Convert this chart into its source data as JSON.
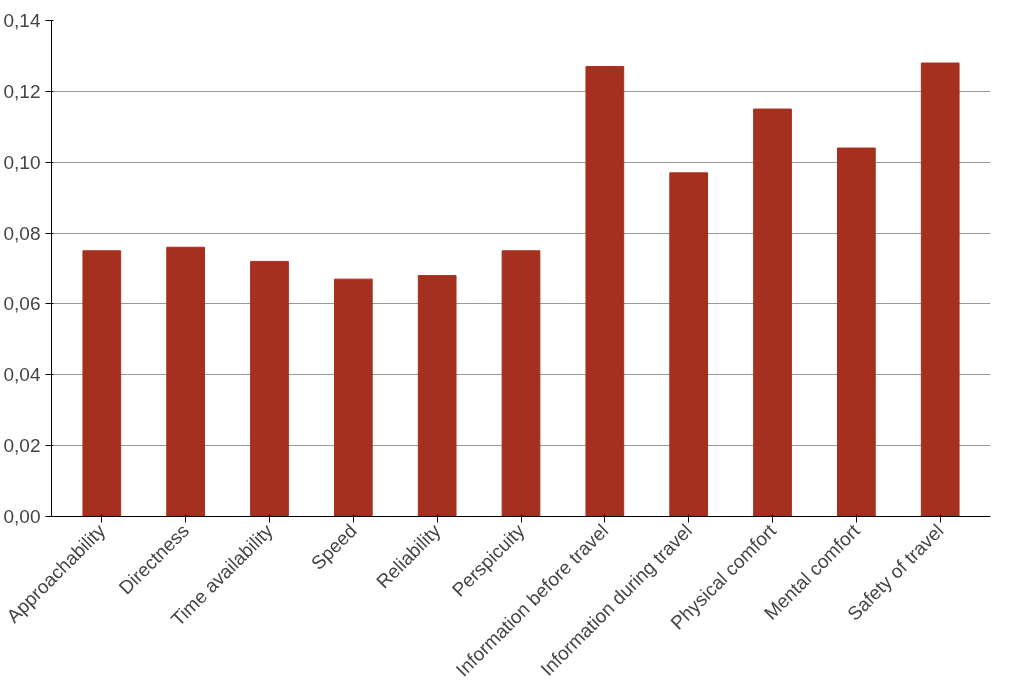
{
  "chart_data": {
    "type": "bar",
    "categories": [
      "Approachability",
      "Directness",
      "Time availability",
      "Speed",
      "Reliability",
      "Perspicuity",
      "Information before travel",
      "Information during travel",
      "Physical comfort",
      "Mental comfort",
      "Safety of travel"
    ],
    "values": [
      0.075,
      0.076,
      0.072,
      0.067,
      0.068,
      0.075,
      0.127,
      0.097,
      0.115,
      0.104,
      0.128
    ],
    "color": "#a5301f",
    "ylim": [
      0,
      0.14
    ],
    "yticks": [
      {
        "value": 0,
        "label": "0,00"
      },
      {
        "value": 0.02,
        "label": "0,02"
      },
      {
        "value": 0.04,
        "label": "0,04"
      },
      {
        "value": 0.06,
        "label": "0,06"
      },
      {
        "value": 0.08,
        "label": "0,08"
      },
      {
        "value": 0.1,
        "label": "0,10"
      },
      {
        "value": 0.12,
        "label": "0,12"
      },
      {
        "value": 0.14,
        "label": "0,14"
      }
    ],
    "grid": "y"
  }
}
